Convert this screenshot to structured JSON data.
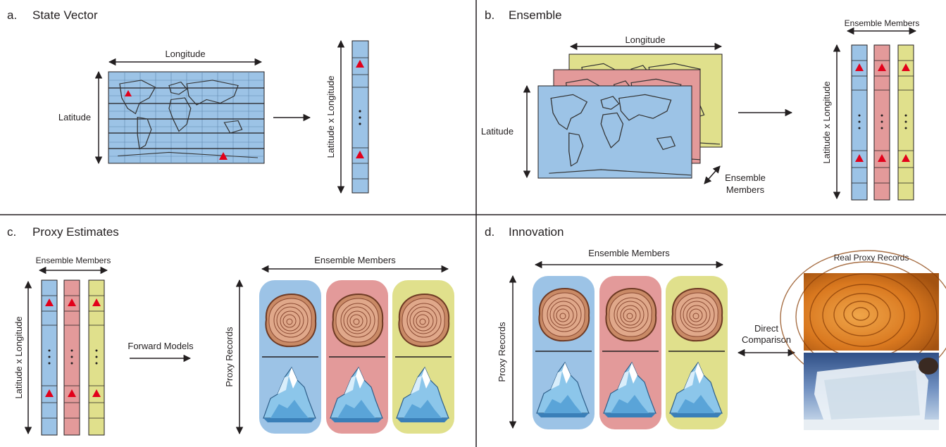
{
  "panels": {
    "a": {
      "letter": "a.",
      "title": "State Vector",
      "longitude_label": "Longitude",
      "latitude_label": "Latitude",
      "vector_label": "Latitude x Longitude",
      "vector_ellipsis": "⋮"
    },
    "b": {
      "letter": "b.",
      "title": "Ensemble",
      "longitude_label": "Longitude",
      "latitude_label": "Latitude",
      "ensemble_label_line1": "Ensemble",
      "ensemble_label_line2": "Members",
      "members_label": "Ensemble Members",
      "vector_label": "Latitude x Longitude"
    },
    "c": {
      "letter": "c.",
      "title": "Proxy Estimates",
      "members_label_left": "Ensemble Members",
      "vector_label": "Latitude x Longitude",
      "forward_label": "Forward Models",
      "members_label_right": "Ensemble Members",
      "proxy_label": "Proxy Records"
    },
    "d": {
      "letter": "d.",
      "title": "Innovation",
      "members_label": "Ensemble Members",
      "proxy_label": "Proxy Records",
      "comparison_line1": "Direct",
      "comparison_line2": "Comparison",
      "real_label": "Real Proxy Records"
    }
  },
  "colors": {
    "blue": "#9cc3e6",
    "red": "#e39a9a",
    "yellow": "#e0e08c",
    "triangle": "#e2001a",
    "wood": "#c98a66",
    "wood_ring": "#8a4a33",
    "ice": "#8cc6ea"
  }
}
